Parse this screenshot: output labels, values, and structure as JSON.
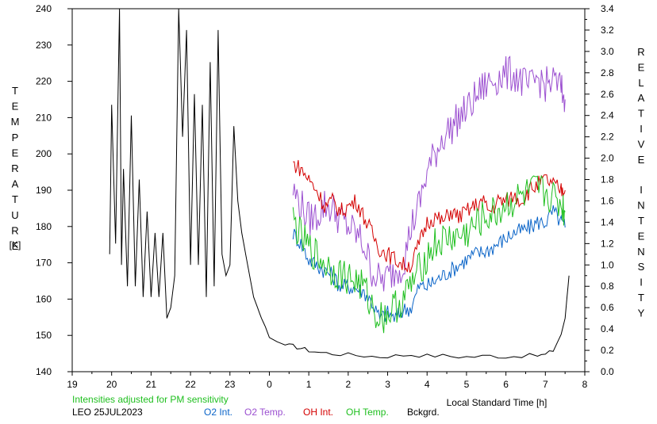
{
  "chart_data": {
    "type": "line",
    "left_axis_label": "TEMPERATURE",
    "left_axis_unit": "[K]",
    "right_axis_label": "RELATIVE INTENSITY",
    "xlabel": "Local Standard Time [h]",
    "x_ticks": [
      "19",
      "20",
      "21",
      "22",
      "23",
      "0",
      "1",
      "2",
      "3",
      "4",
      "5",
      "6",
      "7",
      "8"
    ],
    "x_range": [
      19,
      32
    ],
    "y_left_range": [
      140,
      240
    ],
    "y_left_ticks": [
      140,
      150,
      160,
      170,
      180,
      190,
      200,
      210,
      220,
      230,
      240
    ],
    "y_right_range": [
      0.0,
      3.4
    ],
    "y_right_ticks": [
      "0.0",
      "0.2",
      "0.4",
      "0.6",
      "0.8",
      "1.0",
      "1.2",
      "1.4",
      "1.6",
      "1.8",
      "2.0",
      "2.2",
      "2.4",
      "2.6",
      "2.8",
      "3.0",
      "3.2",
      "3.4"
    ],
    "note": "Intensities adjusted for PM sensitivity",
    "station_date": "LEO 25JUL2023",
    "legend": [
      {
        "name": "O2 Int.",
        "color": "#0a64c8"
      },
      {
        "name": "O2 Temp.",
        "color": "#9b4fd0"
      },
      {
        "name": "OH Int.",
        "color": "#d40000"
      },
      {
        "name": "OH Temp.",
        "color": "#1fbf1f"
      },
      {
        "name": "Bckgrd.",
        "color": "#000000"
      }
    ],
    "series": [
      {
        "name": "Bckgrd.",
        "axis": "right",
        "color": "#000000",
        "x": [
          19.95,
          20.0,
          20.1,
          20.2,
          20.25,
          20.3,
          20.4,
          20.5,
          20.6,
          20.7,
          20.8,
          20.9,
          21.0,
          21.1,
          21.2,
          21.3,
          21.4,
          21.5,
          21.6,
          21.7,
          21.8,
          21.9,
          22.0,
          22.1,
          22.2,
          22.3,
          22.4,
          22.5,
          22.6,
          22.7,
          22.8,
          22.9,
          23.0,
          23.1,
          23.2,
          23.3,
          23.4,
          23.5,
          23.6,
          23.7,
          23.8,
          23.9,
          24.0,
          24.2,
          24.4,
          24.6,
          24.8,
          25.0,
          25.3,
          25.6,
          26.0,
          26.4,
          26.8,
          27.2,
          27.6,
          28.0,
          28.4,
          28.8,
          29.2,
          29.6,
          30.0,
          30.4,
          30.8,
          31.0,
          31.2,
          31.4,
          31.5,
          31.55,
          31.6
        ],
        "y": [
          1.1,
          2.5,
          1.2,
          3.4,
          1.0,
          1.9,
          0.8,
          2.4,
          0.8,
          1.8,
          0.7,
          1.5,
          0.7,
          1.3,
          0.7,
          1.3,
          0.5,
          0.6,
          0.9,
          3.4,
          2.2,
          3.2,
          1.0,
          2.6,
          1.0,
          2.5,
          0.7,
          2.9,
          0.8,
          3.2,
          1.1,
          0.9,
          1.0,
          2.3,
          1.6,
          1.3,
          1.1,
          0.9,
          0.7,
          0.6,
          0.5,
          0.42,
          0.32,
          0.28,
          0.25,
          0.24,
          0.22,
          0.2,
          0.18,
          0.17,
          0.16,
          0.15,
          0.14,
          0.15,
          0.16,
          0.15,
          0.15,
          0.14,
          0.14,
          0.15,
          0.14,
          0.15,
          0.15,
          0.16,
          0.2,
          0.35,
          0.5,
          0.7,
          0.9
        ]
      },
      {
        "name": "O2 Int.",
        "axis": "right",
        "color": "#0a64c8",
        "x": [
          24.6,
          24.8,
          25.0,
          25.2,
          25.4,
          25.6,
          25.8,
          26.0,
          26.2,
          26.4,
          26.6,
          26.8,
          27.0,
          27.2,
          27.4,
          27.6,
          27.8,
          28.0,
          28.2,
          28.4,
          28.6,
          28.8,
          29.0,
          29.2,
          29.4,
          29.6,
          29.8,
          30.0,
          30.2,
          30.4,
          30.6,
          30.8,
          31.0,
          31.2,
          31.4,
          31.5
        ],
        "y": [
          1.3,
          1.2,
          1.05,
          1.0,
          0.95,
          0.9,
          0.8,
          0.8,
          0.78,
          0.75,
          0.65,
          0.5,
          0.55,
          0.5,
          0.58,
          0.6,
          0.8,
          0.8,
          0.85,
          0.9,
          0.95,
          1.0,
          1.05,
          1.1,
          1.12,
          1.15,
          1.2,
          1.25,
          1.3,
          1.32,
          1.35,
          1.4,
          1.4,
          1.5,
          1.4,
          1.35
        ]
      },
      {
        "name": "O2 Temp.",
        "axis": "left",
        "color": "#9b4fd0",
        "x": [
          24.6,
          24.8,
          25.0,
          25.2,
          25.4,
          25.6,
          25.8,
          26.0,
          26.2,
          26.4,
          26.6,
          26.8,
          27.0,
          27.2,
          27.4,
          27.6,
          27.8,
          28.0,
          28.2,
          28.4,
          28.6,
          28.8,
          29.0,
          29.2,
          29.4,
          29.6,
          29.8,
          30.0,
          30.2,
          30.4,
          30.6,
          30.8,
          31.0,
          31.2,
          31.4,
          31.5
        ],
        "y": [
          190,
          186,
          182,
          183,
          186,
          185,
          182,
          180,
          178,
          175,
          168,
          165,
          166,
          168,
          170,
          180,
          186,
          195,
          200,
          205,
          207,
          210,
          212,
          215,
          218,
          220,
          221,
          222,
          222,
          220,
          218,
          221,
          219,
          220,
          218,
          215
        ]
      },
      {
        "name": "OH Int.",
        "axis": "right",
        "color": "#d40000",
        "x": [
          24.6,
          24.8,
          25.0,
          25.2,
          25.4,
          25.6,
          25.8,
          26.0,
          26.2,
          26.4,
          26.6,
          26.8,
          27.0,
          27.2,
          27.4,
          27.6,
          27.8,
          28.0,
          28.2,
          28.4,
          28.6,
          28.8,
          29.0,
          29.2,
          29.4,
          29.6,
          29.8,
          30.0,
          30.2,
          30.4,
          30.6,
          30.8,
          31.0,
          31.2,
          31.4,
          31.5
        ],
        "y": [
          1.95,
          1.9,
          1.8,
          1.7,
          1.55,
          1.6,
          1.5,
          1.55,
          1.6,
          1.45,
          1.3,
          1.15,
          1.1,
          1.05,
          1.0,
          1.0,
          1.2,
          1.4,
          1.45,
          1.4,
          1.5,
          1.45,
          1.5,
          1.55,
          1.6,
          1.5,
          1.6,
          1.6,
          1.65,
          1.6,
          1.7,
          1.75,
          1.8,
          1.75,
          1.7,
          1.7
        ]
      },
      {
        "name": "OH Temp.",
        "axis": "left",
        "color": "#1fbf1f",
        "x": [
          24.6,
          24.8,
          25.0,
          25.2,
          25.4,
          25.6,
          25.8,
          26.0,
          26.2,
          26.4,
          26.6,
          26.8,
          27.0,
          27.2,
          27.4,
          27.6,
          27.8,
          28.0,
          28.2,
          28.4,
          28.6,
          28.8,
          29.0,
          29.2,
          29.4,
          29.6,
          29.8,
          30.0,
          30.2,
          30.4,
          30.6,
          30.8,
          31.0,
          31.2,
          31.4,
          31.5
        ],
        "y": [
          182,
          177,
          174,
          172,
          170,
          168,
          167,
          166,
          165,
          163,
          158,
          155,
          156,
          158,
          160,
          164,
          168,
          172,
          175,
          176,
          177,
          177,
          178,
          180,
          182,
          183,
          184,
          186,
          187,
          188,
          189,
          190,
          189,
          188,
          186,
          184
        ]
      }
    ]
  }
}
